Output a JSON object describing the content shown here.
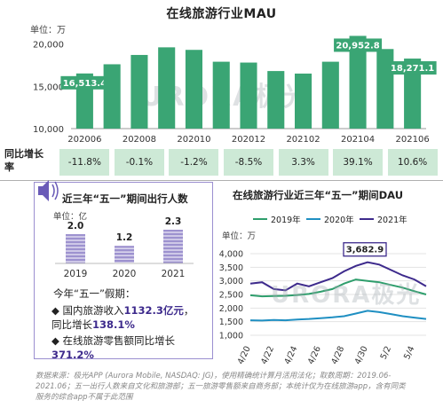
{
  "title": "在线旅游行业MAU",
  "mau_unit": "单位：万",
  "yoy_label": "同比增长率",
  "watermark": "URORA极光",
  "card": {
    "title": "近三年“五一”期间出行人数",
    "unit": "单位：亿",
    "note_head": "今年“五一”假期：",
    "bullet1_prefix": "国内旅游收入",
    "bullet1_value": "1132.3亿元",
    "bullet1_mid": "，同比增长",
    "bullet1_growth": "138.1%",
    "bullet2_prefix": "在线旅游零售额同比增长",
    "bullet2_value": "371.2%"
  },
  "dau_title": "在线旅游行业近三年“五一”期间DAU",
  "dau_unit": "单位：万",
  "footnote": "数据来源：极光APP (Aurora Mobile, NASDAQ: JG)，使用精确统计算月活用法化；取数周期：2019.06-2021.06；五一出行人数来自文化和旅游部；五一旅游零售额来自商务部；本统计仅为在线旅游app，含有同类服务的综合app不属于此范围",
  "colors": {
    "bar": "#3aa574",
    "yoy_bg": "#cde9d6",
    "y2019": "#2e9e6c",
    "y2020": "#1f8fc2",
    "y2021": "#3d2a8c",
    "people_bar": "#9d92cf"
  },
  "chart_data": [
    {
      "type": "bar",
      "title": "在线旅游行业MAU",
      "unit": "单位：万",
      "categories": [
        "202006",
        "",
        "202008",
        "",
        "202010",
        "",
        "202012",
        "",
        "202102",
        "",
        "202104",
        "",
        "202106"
      ],
      "x_tick_labels": [
        "202006",
        "202008",
        "202010",
        "202012",
        "202102",
        "202104",
        "202106"
      ],
      "values": [
        16513.4,
        17600,
        18700,
        19600,
        19300,
        17900,
        17800,
        16800,
        16500,
        17900,
        20952.8,
        19400,
        18271.1
      ],
      "data_labels": {
        "0": "16,513.4",
        "10": "20,952.8",
        "12": "18,271.1"
      },
      "ylim": [
        10000,
        21000
      ],
      "yticks": [
        "10,000",
        "15,000",
        "20,000"
      ],
      "yoy_categories": [
        "202006",
        "202008",
        "202010",
        "202012",
        "202102",
        "202104",
        "202106"
      ],
      "yoy_values": [
        "-11.8%",
        "-0.1%",
        "-1.2%",
        "-8.5%",
        "3.3%",
        "39.1%",
        "10.6%"
      ]
    },
    {
      "type": "bar",
      "title": "近三年“五一”期间出行人数",
      "unit": "单位：亿",
      "categories": [
        "2019",
        "2020",
        "2021"
      ],
      "values": [
        2.0,
        1.2,
        2.3
      ],
      "data_labels": [
        "2.0",
        "1.2",
        "2.3"
      ]
    },
    {
      "type": "line",
      "title": "在线旅游行业近三年“五一”期间DAU",
      "unit": "单位：万",
      "x": [
        "4/20",
        "4/21",
        "4/22",
        "4/23",
        "4/24",
        "4/25",
        "4/26",
        "4/27",
        "4/28",
        "4/29",
        "4/30",
        "5/1",
        "5/2",
        "5/3",
        "5/4",
        "5/5"
      ],
      "x_tick_labels": [
        "4/20",
        "4/22",
        "4/24",
        "4/26",
        "4/28",
        "4/30",
        "5/2",
        "5/4"
      ],
      "ylim": [
        1000,
        4000
      ],
      "yticks": [
        "1,000",
        "1,500",
        "2,000",
        "2,500",
        "3,000",
        "3,500",
        "4,000"
      ],
      "series": [
        {
          "name": "2019年",
          "values": [
            2470,
            2430,
            2440,
            2450,
            2480,
            2520,
            2600,
            2700,
            2900,
            3050,
            3000,
            2950,
            2850,
            2750,
            2620,
            2500
          ]
        },
        {
          "name": "2020年",
          "values": [
            1550,
            1540,
            1560,
            1550,
            1580,
            1600,
            1630,
            1660,
            1700,
            1800,
            1900,
            1850,
            1780,
            1700,
            1650,
            1600
          ]
        },
        {
          "name": "2021年",
          "values": [
            2900,
            2950,
            2700,
            2650,
            2900,
            2800,
            2950,
            3100,
            3350,
            3550,
            3682.9,
            3600,
            3400,
            3200,
            3050,
            2800
          ]
        }
      ],
      "annotation": "3,682.9"
    }
  ]
}
